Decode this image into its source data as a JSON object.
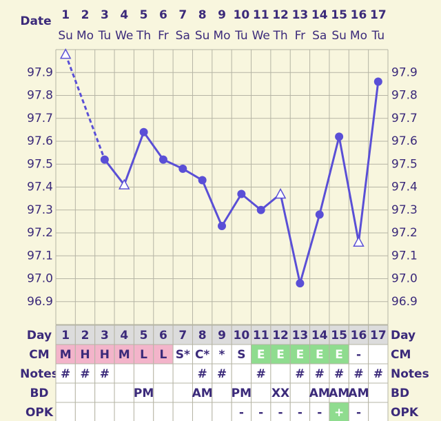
{
  "chart_data": {
    "type": "line",
    "date_label": "Date",
    "dates": [
      1,
      2,
      3,
      4,
      5,
      6,
      7,
      8,
      9,
      10,
      11,
      12,
      13,
      14,
      15,
      16,
      17
    ],
    "weekdays": [
      "Su",
      "Mo",
      "Tu",
      "We",
      "Th",
      "Fr",
      "Sa",
      "Su",
      "Mo",
      "Tu",
      "We",
      "Th",
      "Fr",
      "Sa",
      "Su",
      "Mo",
      "Tu"
    ],
    "series": [
      {
        "color": "#5a4fd6",
        "values": [
          97.98,
          null,
          97.52,
          97.41,
          97.64,
          97.52,
          97.48,
          97.43,
          97.23,
          97.37,
          97.3,
          97.37,
          96.98,
          97.28,
          97.62,
          97.16,
          97.86
        ],
        "markers": [
          "open-triangle",
          null,
          "circle",
          "open-triangle",
          "circle",
          "circle",
          "circle",
          "circle",
          "circle",
          "circle",
          "circle",
          "open-triangle",
          "circle",
          "circle",
          "circle",
          "open-triangle",
          "circle"
        ],
        "dashed_gaps": true
      }
    ],
    "ylim": [
      96.8,
      98.0
    ],
    "yticks": [
      96.9,
      {
        "value": 97,
        "label": "97.0"
      },
      97.1,
      97.2,
      97.3,
      97.4,
      97.5,
      97.6,
      97.7,
      97.8,
      97.9
    ],
    "grid": true
  },
  "table": {
    "rows": [
      {
        "label": "Day",
        "cells": [
          1,
          2,
          3,
          4,
          5,
          6,
          7,
          8,
          9,
          10,
          11,
          12,
          13,
          14,
          15,
          16,
          17
        ],
        "fills": [
          "#dcdcdc",
          "#dcdcdc",
          "#dcdcdc",
          "#dcdcdc",
          "#dcdcdc",
          "#dcdcdc",
          "#dcdcdc",
          "#dcdcdc",
          "#dcdcdc",
          "#dcdcdc",
          "#dcdcdc",
          "#dcdcdc",
          "#dcdcdc",
          "#dcdcdc",
          "#dcdcdc",
          "#dcdcdc",
          "#dcdcdc"
        ]
      },
      {
        "label": "CM",
        "cells": [
          "M",
          "H",
          "H",
          "M",
          "L",
          "L",
          "S*",
          "C*",
          "*",
          "S",
          "E",
          "E",
          "E",
          "E",
          "E",
          "-",
          null
        ],
        "fills": [
          "#f3b4ca",
          "#f3b4ca",
          "#f3b4ca",
          "#f3b4ca",
          "#f3b4ca",
          "#f3b4ca",
          null,
          null,
          null,
          null,
          "#8fdc8f",
          "#8fdc8f",
          "#8fdc8f",
          "#8fdc8f",
          "#8fdc8f",
          null,
          null
        ]
      },
      {
        "label": "Notes",
        "cells": [
          "#",
          "#",
          "#",
          null,
          null,
          null,
          null,
          "#",
          "#",
          null,
          "#",
          null,
          "#",
          "#",
          "#",
          "#",
          "#"
        ]
      },
      {
        "label": "BD",
        "cells": [
          null,
          null,
          null,
          null,
          "PM",
          null,
          null,
          "AM",
          null,
          "PM",
          null,
          "XX",
          null,
          "AM",
          "AM",
          "AM",
          null
        ]
      },
      {
        "label": "OPK",
        "cells": [
          null,
          null,
          null,
          null,
          null,
          null,
          null,
          null,
          null,
          "-",
          "-",
          "-",
          "-",
          "-",
          "+",
          "-",
          null
        ],
        "fills": [
          null,
          null,
          null,
          null,
          null,
          null,
          null,
          null,
          null,
          null,
          null,
          null,
          null,
          null,
          "#8fdc8f",
          null,
          null
        ]
      }
    ]
  }
}
